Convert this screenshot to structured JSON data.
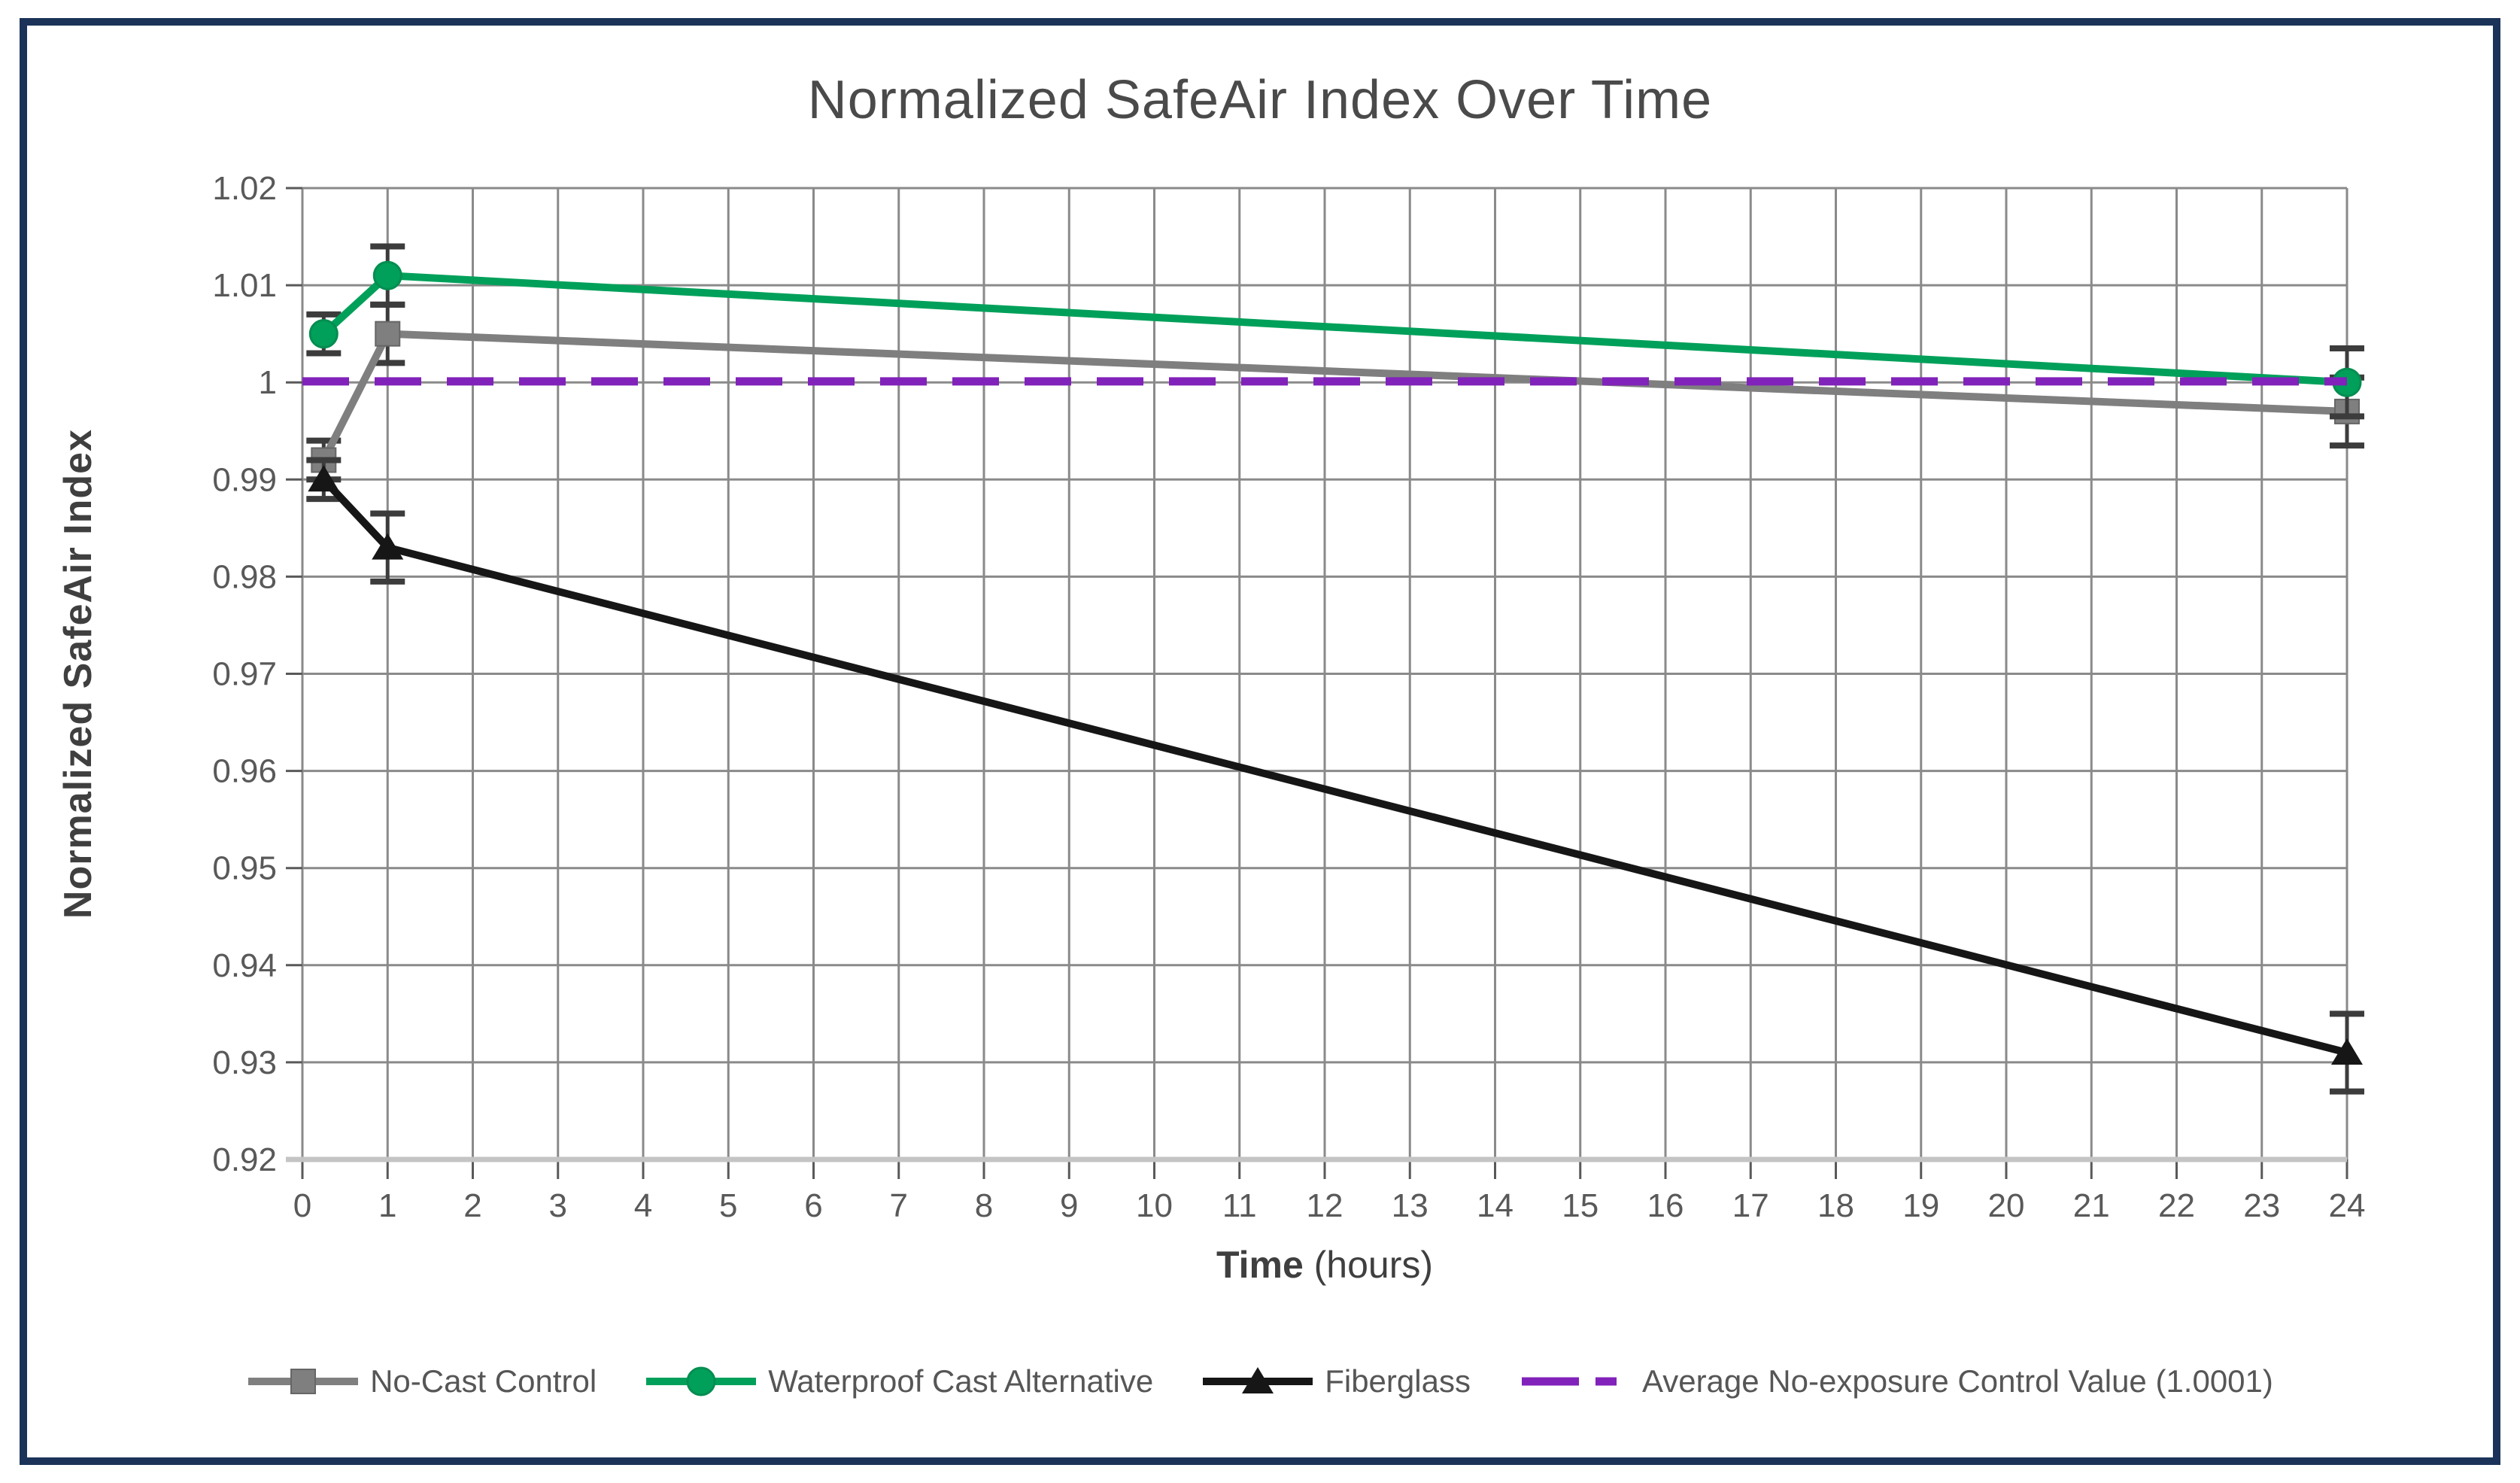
{
  "chart_data": {
    "type": "line",
    "title": "Normalized SafeAir Index Over Time",
    "ylabel": "Normalized SafeAir Index",
    "xlabel_bold": "Time",
    "xlabel_unit": " (hours)",
    "xlim": [
      0,
      24
    ],
    "ylim": [
      0.92,
      1.02
    ],
    "x_ticks": [
      0,
      1,
      2,
      3,
      4,
      5,
      6,
      7,
      8,
      9,
      10,
      11,
      12,
      13,
      14,
      15,
      16,
      17,
      18,
      19,
      20,
      21,
      22,
      23,
      24
    ],
    "y_ticks": [
      {
        "value": 1.02,
        "label": "1.02"
      },
      {
        "value": 1.01,
        "label": "1.01"
      },
      {
        "value": 1.0,
        "label": "1"
      },
      {
        "value": 0.99,
        "label": "0.99"
      },
      {
        "value": 0.98,
        "label": "0.98"
      },
      {
        "value": 0.97,
        "label": "0.97"
      },
      {
        "value": 0.96,
        "label": "0.96"
      },
      {
        "value": 0.95,
        "label": "0.95"
      },
      {
        "value": 0.94,
        "label": "0.94"
      },
      {
        "value": 0.93,
        "label": "0.93"
      },
      {
        "value": 0.92,
        "label": "0.92"
      }
    ],
    "grid": true,
    "legend_position": "bottom",
    "series": [
      {
        "name": "No-Cast Control",
        "marker": "square",
        "color": "#7F7F7F",
        "x": [
          0.25,
          1,
          24
        ],
        "values": [
          0.992,
          1.005,
          0.997
        ],
        "errors": [
          0.002,
          0.003,
          0.0035
        ]
      },
      {
        "name": "Waterproof Cast Alternative",
        "marker": "circle",
        "color": "#00A05A",
        "x": [
          0.25,
          1,
          24
        ],
        "values": [
          1.005,
          1.011,
          1.0
        ],
        "errors": [
          0.002,
          0.003,
          0.0035
        ]
      },
      {
        "name": "Fiberglass",
        "marker": "triangle",
        "color": "#161616",
        "x": [
          0.25,
          1,
          24
        ],
        "values": [
          0.99,
          0.983,
          0.931
        ],
        "errors": [
          0.002,
          0.0035,
          0.004
        ]
      }
    ],
    "reference_line": {
      "name": "Average No-exposure Control Value (1.0001)",
      "value": 1.0001,
      "color": "#8122BA",
      "style": "dashed"
    }
  },
  "styles": {
    "frame_border": "#1B3358",
    "grid_color": "#8A8A8A",
    "axis_color": "#C4C4C4",
    "tick_color": "#595959",
    "error_bar_color": "#3C3C3C",
    "title_color": "#4A4A4A",
    "axis_title_color": "#3F3F3F",
    "legend_text_color": "#565656",
    "background": "#FFFFFF"
  }
}
